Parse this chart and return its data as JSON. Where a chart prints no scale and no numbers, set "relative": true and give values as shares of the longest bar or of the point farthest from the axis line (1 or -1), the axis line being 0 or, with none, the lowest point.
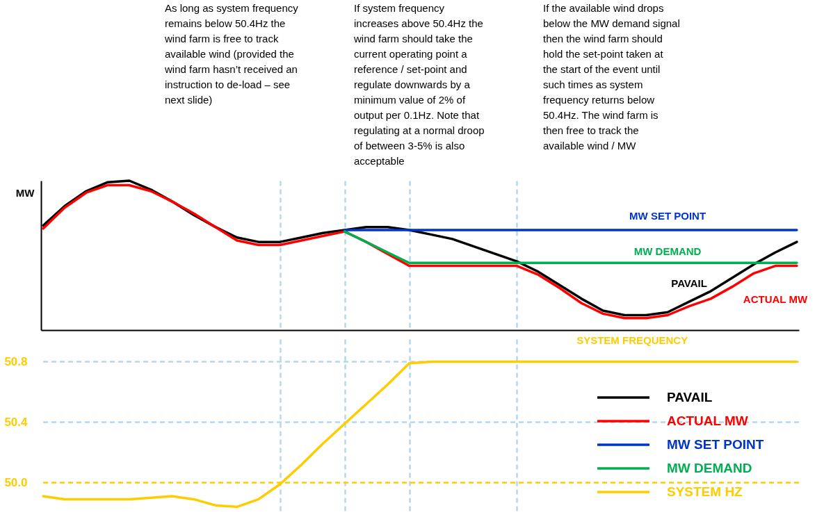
{
  "chart_data": [
    {
      "type": "line",
      "relative": true,
      "ylabel": "MW",
      "tick_labels": false,
      "legend": "bottom right",
      "grid": "x",
      "categories": [
        null,
        null,
        null,
        null,
        null,
        null,
        null,
        null,
        null,
        null,
        null,
        null,
        null,
        null,
        null,
        null,
        null,
        null,
        null,
        null,
        null,
        null,
        null,
        null,
        null,
        null,
        null,
        null,
        null,
        null,
        null,
        null,
        null,
        null,
        null,
        null
      ],
      "annotations": [
        "As long as system frequency remains below 50.4Hz the wind farm is free to track available wind (provided the wind farm hasn’t received an instruction to de-load – see next slide)",
        "If system frequency increases above 50.4Hz the wind farm should take the current operating point a reference / set-point and regulate downwards by a minimum value of 2% of output per 0.1Hz. Note that regulating at a normal droop of between 3-5% is also acceptable",
        "If the available wind drops below the MW demand signal then the wind farm should hold the set-point taken at the start of the event until such times as system frequency returns below 50.4Hz. The wind farm is then free to track the available wind / MW"
      ],
      "series": [
        {
          "name": "PAVAIL",
          "color": "#000000",
          "values": [
            0.7,
            0.83,
            0.93,
            0.99,
            1,
            0.94,
            0.86,
            0.77,
            0.69,
            0.62,
            0.59,
            0.59,
            0.62,
            0.65,
            0.67,
            0.69,
            0.69,
            0.67,
            0.64,
            0.61,
            0.56,
            0.51,
            0.46,
            0.39,
            0.3,
            0.21,
            0.13,
            0.1,
            0.1,
            0.12,
            0.19,
            0.26,
            0.35,
            0.44,
            0.52,
            0.59
          ]
        },
        {
          "name": "ACTUAL MW",
          "color": "#ff0000",
          "values": [
            0.68,
            0.82,
            0.92,
            0.97,
            0.97,
            0.93,
            0.86,
            0.78,
            0.69,
            0.6,
            0.57,
            0.57,
            0.6,
            0.63,
            0.66,
            0.59,
            0.51,
            0.43,
            0.43,
            0.43,
            0.43,
            0.43,
            0.43,
            0.37,
            0.28,
            0.18,
            0.11,
            0.08,
            0.08,
            0.1,
            0.16,
            0.21,
            0.29,
            0.38,
            0.43,
            0.43
          ]
        },
        {
          "name": "MW SET POINT",
          "color": "#0033cc",
          "values": [
            null,
            null,
            null,
            null,
            null,
            null,
            null,
            null,
            null,
            null,
            null,
            null,
            null,
            null,
            0.67,
            0.67,
            0.67,
            0.67,
            0.67,
            0.67,
            0.67,
            0.67,
            0.67,
            0.67,
            0.67,
            0.67,
            0.67,
            0.67,
            0.67,
            0.67,
            0.67,
            0.67,
            0.67,
            0.67,
            0.67,
            0.67
          ]
        },
        {
          "name": "MW DEMAND",
          "color": "#00b050",
          "values": [
            null,
            null,
            null,
            null,
            null,
            null,
            null,
            null,
            null,
            null,
            null,
            null,
            null,
            null,
            0.66,
            0.59,
            0.52,
            0.45,
            0.45,
            0.45,
            0.45,
            0.45,
            0.45,
            0.45,
            0.45,
            0.45,
            0.45,
            0.45,
            0.45,
            0.45,
            0.45,
            0.45,
            0.45,
            0.45,
            0.45,
            0.45
          ]
        }
      ]
    },
    {
      "type": "line",
      "ylim": [
        49.8,
        50.95
      ],
      "yticks": [
        {
          "value": 50,
          "label": "50.0"
        },
        50.4,
        50.8
      ],
      "tick_labels": "y",
      "legend": "bottom right",
      "grid": "x",
      "categories": [
        null,
        null,
        null,
        null,
        null,
        null,
        null,
        null,
        null,
        null,
        null,
        null,
        null,
        null,
        null,
        null,
        null,
        null,
        null,
        null,
        null,
        null,
        null,
        null,
        null,
        null,
        null,
        null,
        null,
        null,
        null,
        null,
        null,
        null,
        null,
        null
      ],
      "annotations": [
        "SYSTEM FREQUENCY"
      ],
      "ref_lines": [
        {
          "axis": "y",
          "value": 50.8,
          "color": "#b4d7ea",
          "line_style": "dashed"
        },
        {
          "axis": "y",
          "value": 50.4,
          "color": "#b4d7ea",
          "line_style": "dashed"
        },
        {
          "axis": "y",
          "value": 50.0,
          "color": "#ffcc00",
          "line_style": "dashed"
        }
      ],
      "series": [
        {
          "name": "SYSTEM HZ",
          "color": "#ffcc00",
          "values": [
            49.91,
            49.89,
            49.89,
            49.89,
            49.89,
            49.9,
            49.91,
            49.89,
            49.85,
            49.84,
            49.89,
            49.99,
            50.12,
            50.26,
            50.39,
            50.52,
            50.65,
            50.79,
            50.8,
            50.8,
            50.8,
            50.8,
            50.8,
            50.8,
            50.8,
            50.8,
            50.8,
            50.8,
            50.8,
            50.8,
            50.8,
            50.8,
            50.8,
            50.8,
            50.8,
            50.8
          ]
        }
      ]
    }
  ]
}
